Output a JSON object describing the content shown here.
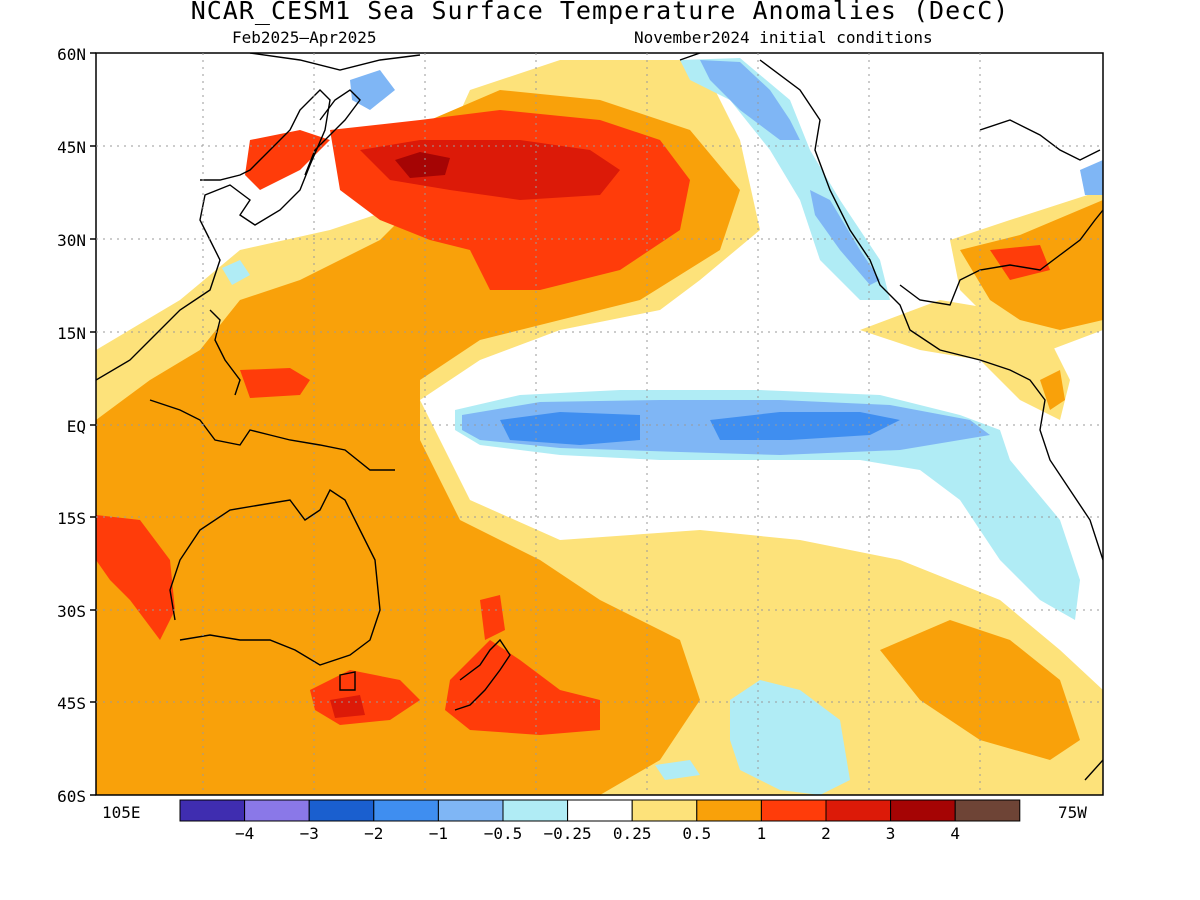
{
  "title": "NCAR_CESM1 Sea Surface Temperature Anomalies (DecC)",
  "subtitle_left": "Feb2025–Apr2025",
  "subtitle_right": "November2024 initial conditions",
  "lat_labels": [
    "60N",
    "45N",
    "30N",
    "15N",
    "EQ",
    "15S",
    "30S",
    "45S",
    "60S"
  ],
  "lon_left": "105E",
  "lon_right": "75W",
  "colorbar": {
    "colors": [
      "#3f2db0",
      "#8a78e8",
      "#1a5fcf",
      "#3f8ef0",
      "#7fb6f5",
      "#b0ecf5",
      "#ffffff",
      "#fde27a",
      "#f9a10a",
      "#ff3c0a",
      "#dc1a08",
      "#a50404",
      "#6e4436"
    ],
    "tick_labels": [
      "−4",
      "−3",
      "−2",
      "−1",
      "−0.5",
      "−0.25",
      "0.25",
      "0.5",
      "1",
      "2",
      "3",
      "4"
    ]
  },
  "legend_colors": {
    "neg_strong": "#3f8ef0",
    "neg_mid": "#7fb6f5",
    "neg_weak": "#b0ecf5",
    "pos_weak": "#fde27a",
    "pos_mid": "#f9a10a",
    "pos_strong": "#ff3c0a",
    "pos_very": "#dc1a08",
    "pos_extreme": "#a50404"
  }
}
